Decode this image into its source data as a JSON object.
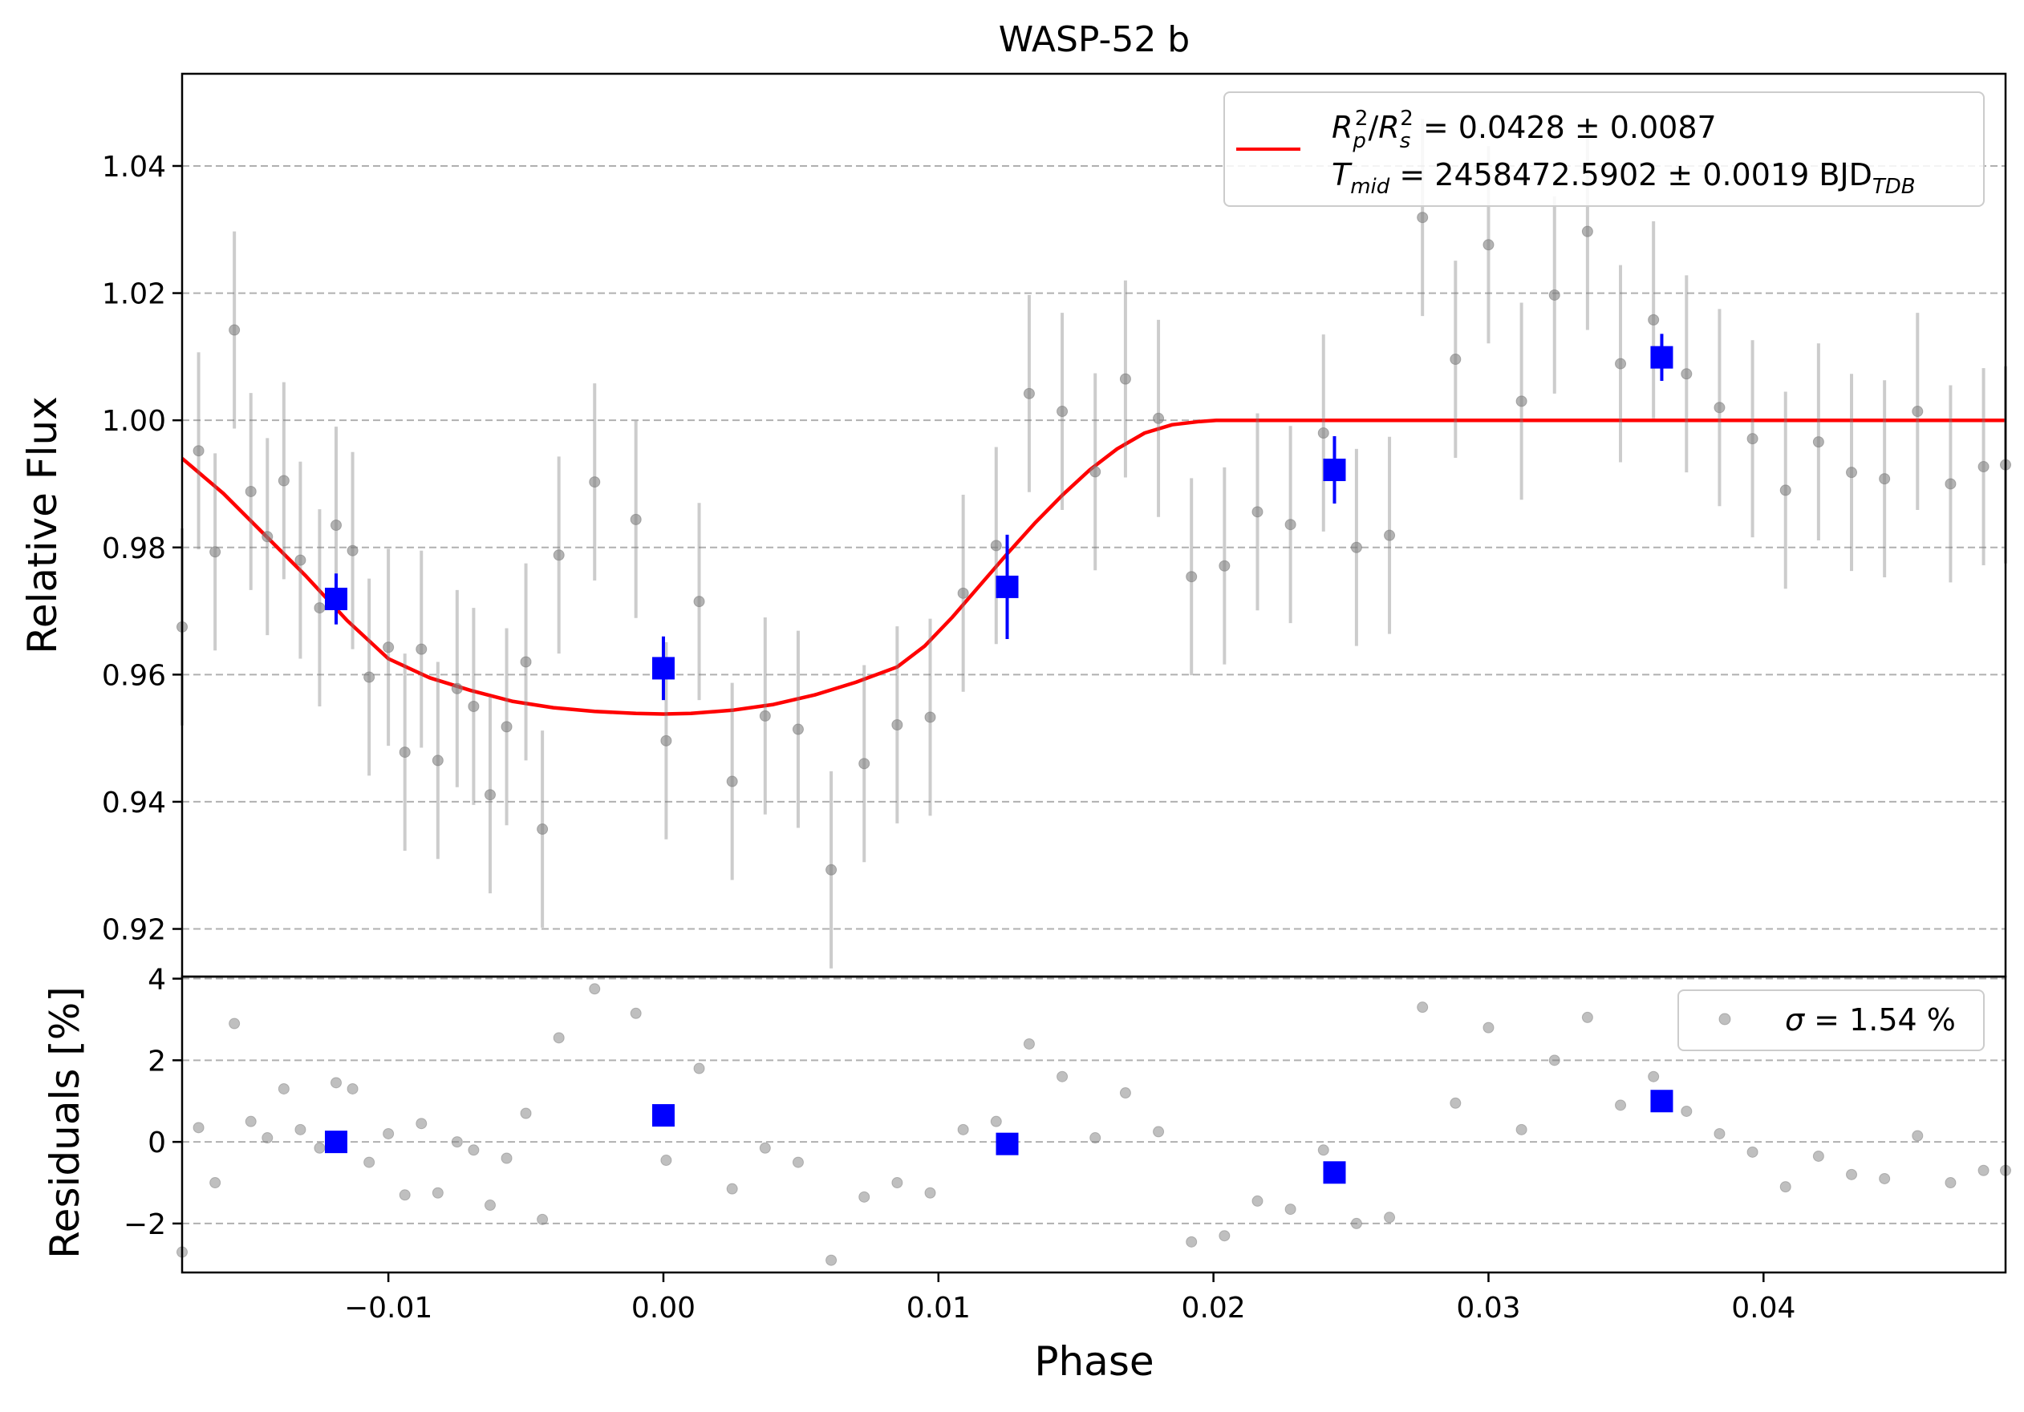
{
  "chart_data": {
    "type": "scatter",
    "title": "WASP-52 b",
    "xlabel": "Phase",
    "xlim": [
      -0.0175,
      0.0488
    ],
    "xticks": [
      -0.01,
      0.0,
      0.01,
      0.02,
      0.03,
      0.04
    ],
    "xtick_labels": [
      "−0.01",
      "0.00",
      "0.01",
      "0.02",
      "0.03",
      "0.04"
    ],
    "grid": "horizontal dashed",
    "top_panel": {
      "ylabel": "Relative Flux",
      "ylim": [
        0.9125,
        1.0545
      ],
      "yticks": [
        0.92,
        0.94,
        0.96,
        0.98,
        1.0,
        1.02,
        1.04
      ],
      "ytick_labels": [
        "0.92",
        "0.94",
        "0.96",
        "0.98",
        "1.00",
        "1.02",
        "1.04"
      ],
      "legend": {
        "placement": "upper-right",
        "model_label": {
          "line1": {
            "R": "R",
            "p": "p",
            "s": "s",
            "sq": "2",
            "slash": "/",
            "rest": " = 0.0428 ± 0.0087"
          },
          "line2": {
            "T": "T",
            "mid": "mid",
            "rest": " = 2458472.5902 ± 0.0019 BJD",
            "sub": "TDB"
          }
        }
      },
      "model": {
        "name": "transit model",
        "color": "#ff0000",
        "x": [
          -0.0175,
          -0.016,
          -0.0145,
          -0.013,
          -0.0115,
          -0.01,
          -0.0085,
          -0.007,
          -0.0055,
          -0.004,
          -0.0025,
          -0.001,
          0.0,
          0.001,
          0.0025,
          0.004,
          0.0055,
          0.007,
          0.0085,
          0.0095,
          0.0105,
          0.0115,
          0.0125,
          0.0135,
          0.0145,
          0.0155,
          0.0165,
          0.0175,
          0.0185,
          0.0195,
          0.0201,
          0.0205,
          0.022,
          0.03,
          0.04,
          0.0488
        ],
        "y": [
          0.994,
          0.9885,
          0.982,
          0.9755,
          0.9685,
          0.9625,
          0.9595,
          0.9575,
          0.9558,
          0.9548,
          0.9542,
          0.9539,
          0.9538,
          0.9539,
          0.9544,
          0.9553,
          0.9568,
          0.9588,
          0.9612,
          0.9645,
          0.969,
          0.974,
          0.979,
          0.9838,
          0.9882,
          0.9922,
          0.9955,
          0.998,
          0.9993,
          0.9998,
          1.0,
          1.0,
          1.0,
          1.0,
          1.0,
          1.0
        ]
      },
      "data_points": {
        "name": "data",
        "color": "#808080",
        "x": [
          -0.0175,
          -0.0169,
          -0.0163,
          -0.0156,
          -0.015,
          -0.0144,
          -0.0138,
          -0.0132,
          -0.0125,
          -0.0119,
          -0.0113,
          -0.0107,
          -0.01,
          -0.0094,
          -0.0088,
          -0.0082,
          -0.0075,
          -0.0069,
          -0.0063,
          -0.0057,
          -0.005,
          -0.0044,
          -0.0038,
          -0.0025,
          -0.001,
          0.0001,
          0.0013,
          0.0025,
          0.0037,
          0.0049,
          0.0061,
          0.0073,
          0.0085,
          0.0097,
          0.0109,
          0.0121,
          0.0133,
          0.0145,
          0.0157,
          0.0168,
          0.018,
          0.0192,
          0.0204,
          0.0216,
          0.0228,
          0.024,
          0.0252,
          0.0264,
          0.0276,
          0.0288,
          0.03,
          0.0312,
          0.0324,
          0.0336,
          0.0348,
          0.036,
          0.0372,
          0.0384,
          0.0396,
          0.0408,
          0.042,
          0.0432,
          0.0444,
          0.0456,
          0.0468,
          0.048,
          0.0488
        ],
        "y": [
          0.9675,
          0.9952,
          0.9793,
          1.0142,
          0.9888,
          0.9817,
          0.9905,
          0.978,
          0.9705,
          0.9835,
          0.9795,
          0.9596,
          0.9643,
          0.9478,
          0.964,
          0.9465,
          0.9578,
          0.955,
          0.9411,
          0.9518,
          0.962,
          0.9357,
          0.9788,
          0.9903,
          0.9844,
          0.9496,
          0.9715,
          0.9432,
          0.9535,
          0.9514,
          0.9293,
          0.946,
          0.9521,
          0.9533,
          0.9728,
          0.9803,
          1.0042,
          1.0014,
          0.9919,
          1.0065,
          1.0003,
          0.9754,
          0.9771,
          0.9856,
          0.9836,
          0.998,
          0.98,
          0.9819,
          1.0319,
          1.0096,
          1.0276,
          1.003,
          1.0197,
          1.0297,
          1.0089,
          1.0158,
          1.0073,
          1.002,
          0.9971,
          0.989,
          0.9966,
          0.9918,
          0.9908,
          1.0014,
          0.99,
          0.9927,
          0.993
        ],
        "yerr": 0.0155
      },
      "binned_points": {
        "name": "binned",
        "color": "#0000ff",
        "x": [
          -0.0119,
          0.0,
          0.0125,
          0.0244,
          0.0363
        ],
        "y": [
          0.9719,
          0.961,
          0.9738,
          0.9922,
          1.0099
        ],
        "yerr": [
          0.004,
          0.005,
          0.0082,
          0.0053,
          0.0037
        ]
      }
    },
    "bottom_panel": {
      "ylabel": "Residuals [%]",
      "ylim": [
        -3.2,
        4.05
      ],
      "yticks": [
        -2,
        0,
        2,
        4
      ],
      "ytick_labels": [
        "−2",
        "0",
        "2",
        "4"
      ],
      "legend": {
        "placement": "upper-right",
        "sigma": "σ",
        "rest": " = 1.54 %"
      },
      "residual_points": {
        "color": "#808080",
        "x": [
          -0.0175,
          -0.0169,
          -0.0163,
          -0.0156,
          -0.015,
          -0.0144,
          -0.0138,
          -0.0132,
          -0.0125,
          -0.0119,
          -0.0113,
          -0.0107,
          -0.01,
          -0.0094,
          -0.0088,
          -0.0082,
          -0.0075,
          -0.0069,
          -0.0063,
          -0.0057,
          -0.005,
          -0.0044,
          -0.0038,
          -0.0025,
          -0.001,
          0.0001,
          0.0013,
          0.0025,
          0.0037,
          0.0049,
          0.0061,
          0.0073,
          0.0085,
          0.0097,
          0.0109,
          0.0121,
          0.0133,
          0.0145,
          0.0157,
          0.0168,
          0.018,
          0.0192,
          0.0204,
          0.0216,
          0.0228,
          0.024,
          0.0252,
          0.0264,
          0.0276,
          0.0288,
          0.03,
          0.0312,
          0.0324,
          0.0336,
          0.0348,
          0.036,
          0.0372,
          0.0384,
          0.0396,
          0.0408,
          0.042,
          0.0432,
          0.0444,
          0.0456,
          0.0468,
          0.048,
          0.0488
        ],
        "y": [
          -2.7,
          0.35,
          -1.0,
          2.9,
          0.5,
          0.1,
          1.3,
          0.3,
          -0.15,
          1.45,
          1.3,
          -0.5,
          0.2,
          -1.3,
          0.45,
          -1.25,
          0.0,
          -0.2,
          -1.55,
          -0.4,
          0.7,
          -1.9,
          2.55,
          3.75,
          3.15,
          -0.45,
          1.8,
          -1.15,
          -0.15,
          -0.5,
          -2.9,
          -1.35,
          -1.0,
          -1.25,
          0.3,
          0.5,
          2.4,
          1.6,
          0.1,
          1.2,
          0.25,
          -2.45,
          -2.3,
          -1.45,
          -1.65,
          -0.2,
          -2.0,
          -1.85,
          3.3,
          0.95,
          2.8,
          0.3,
          2.0,
          3.05,
          0.9,
          1.6,
          0.75,
          0.2,
          -0.25,
          -1.1,
          -0.35,
          -0.8,
          -0.9,
          0.15,
          -1.0,
          -0.7,
          -0.7
        ]
      },
      "binned_residuals": {
        "color": "#0000ff",
        "x": [
          -0.0119,
          0.0,
          0.0125,
          0.0244,
          0.0363
        ],
        "y": [
          0.0,
          0.65,
          -0.05,
          -0.75,
          1.0
        ]
      }
    }
  }
}
